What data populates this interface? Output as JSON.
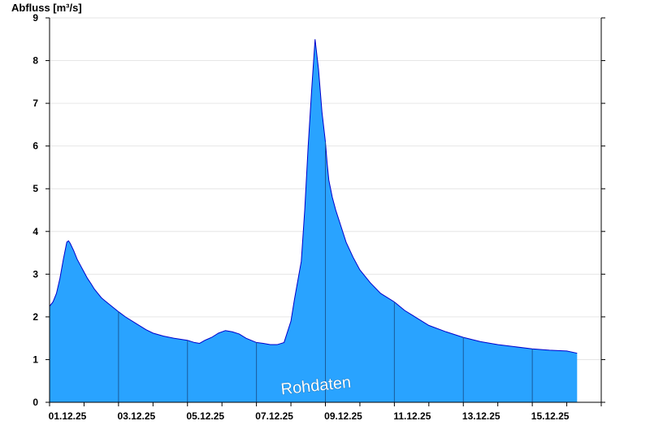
{
  "chart_data": {
    "type": "area",
    "ylabel": "Abfluss [m³/s]",
    "x_tick_labels": [
      "01.12.25",
      "03.12.25",
      "05.12.25",
      "07.12.25",
      "09.12.25",
      "11.12.25",
      "13.12.25",
      "15.12.25"
    ],
    "x_start_date": "01.12.25",
    "xlim_days": [
      0,
      16
    ],
    "ylim": [
      0,
      9
    ],
    "y_ticks": [
      0,
      1,
      2,
      3,
      4,
      5,
      6,
      7,
      8,
      9
    ],
    "grid": true,
    "fill_color": "#29A3FF",
    "line_color": "#0000CC",
    "annotation": "Rohdaten",
    "series": [
      {
        "x": [
          0.0,
          0.1,
          0.2,
          0.3,
          0.4,
          0.5,
          0.55,
          0.6,
          0.7,
          0.8,
          0.9,
          1.0,
          1.1,
          1.2,
          1.3,
          1.4,
          1.5,
          1.6,
          1.8,
          2.0,
          2.2,
          2.5,
          2.8,
          3.0,
          3.3,
          3.6,
          4.0,
          4.2,
          4.35,
          4.5,
          4.7,
          4.9,
          5.1,
          5.3,
          5.5,
          5.7,
          6.0,
          6.2,
          6.4,
          6.6,
          6.8,
          7.0,
          7.1,
          7.3,
          7.4,
          7.5,
          7.6,
          7.7,
          7.8,
          7.9,
          8.0,
          8.05,
          8.1,
          8.2,
          8.3,
          8.4,
          8.5,
          8.6,
          8.8,
          9.0,
          9.3,
          9.6,
          10.0,
          10.3,
          10.6,
          11.0,
          11.5,
          12.0,
          12.5,
          13.0,
          13.5,
          14.0,
          14.5,
          15.0,
          15.3
        ],
        "y": [
          2.25,
          2.35,
          2.55,
          2.9,
          3.35,
          3.75,
          3.78,
          3.72,
          3.55,
          3.35,
          3.2,
          3.05,
          2.9,
          2.78,
          2.65,
          2.55,
          2.45,
          2.38,
          2.25,
          2.12,
          2.0,
          1.85,
          1.7,
          1.62,
          1.55,
          1.5,
          1.45,
          1.4,
          1.38,
          1.45,
          1.52,
          1.62,
          1.68,
          1.65,
          1.6,
          1.5,
          1.4,
          1.38,
          1.35,
          1.35,
          1.4,
          1.9,
          2.4,
          3.3,
          4.5,
          6.0,
          7.3,
          8.5,
          7.8,
          6.8,
          6.1,
          5.6,
          5.2,
          4.8,
          4.5,
          4.25,
          4.0,
          3.75,
          3.4,
          3.1,
          2.8,
          2.55,
          2.35,
          2.15,
          2.0,
          1.8,
          1.65,
          1.52,
          1.42,
          1.35,
          1.3,
          1.25,
          1.22,
          1.2,
          1.15
        ]
      }
    ]
  }
}
